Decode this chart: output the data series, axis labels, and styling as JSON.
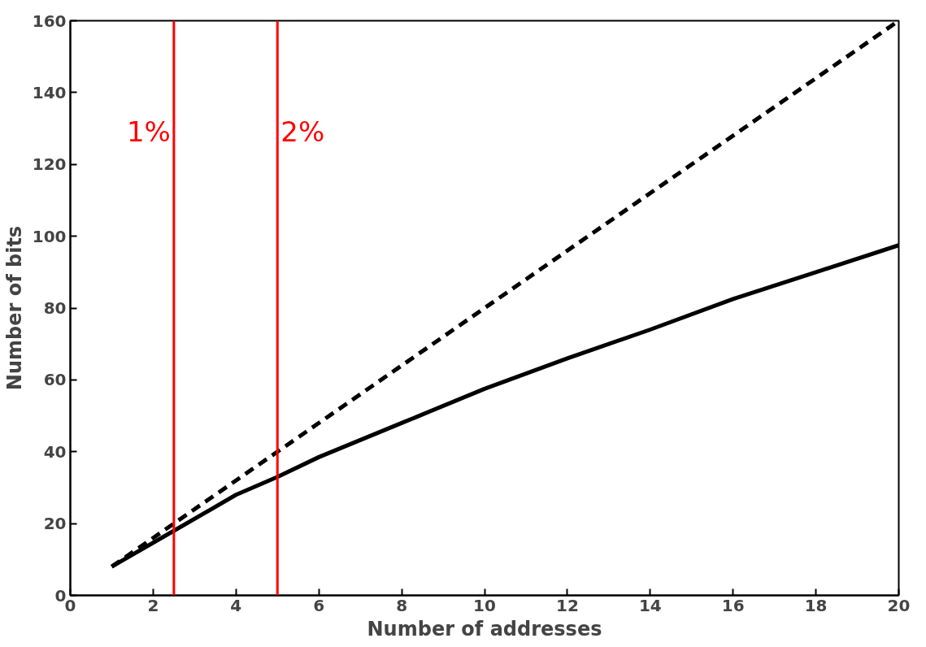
{
  "chart_data": {
    "type": "line",
    "xlabel": "Number of addresses",
    "ylabel": "Number of bits",
    "xlim": [
      0,
      20
    ],
    "ylim": [
      0,
      160
    ],
    "xticks": [
      0,
      2,
      4,
      6,
      8,
      10,
      12,
      14,
      16,
      18,
      20
    ],
    "yticks": [
      0,
      20,
      40,
      60,
      80,
      100,
      120,
      140,
      160
    ],
    "grid": false,
    "series": [
      {
        "color": "#000000",
        "line_style": "dashed",
        "x": [
          1,
          20
        ],
        "values": [
          8,
          160
        ]
      },
      {
        "color": "#000000",
        "line_style": "solid",
        "x": [
          1,
          2.5,
          4,
          5,
          6,
          8,
          10,
          12,
          14,
          16,
          18,
          20
        ],
        "values": [
          8,
          18,
          28,
          33,
          38.5,
          48,
          57.5,
          66,
          74,
          82.5,
          90,
          97.5
        ]
      }
    ],
    "ref_lines": [
      {
        "axis": "x",
        "value": 2.5,
        "color": "#ff0000"
      },
      {
        "axis": "x",
        "value": 5,
        "color": "#ff0000"
      }
    ],
    "annotations": [
      {
        "text": "1%",
        "x": 2.5,
        "y": 129
      },
      {
        "text": "2%",
        "x": 5,
        "y": 129
      }
    ]
  }
}
